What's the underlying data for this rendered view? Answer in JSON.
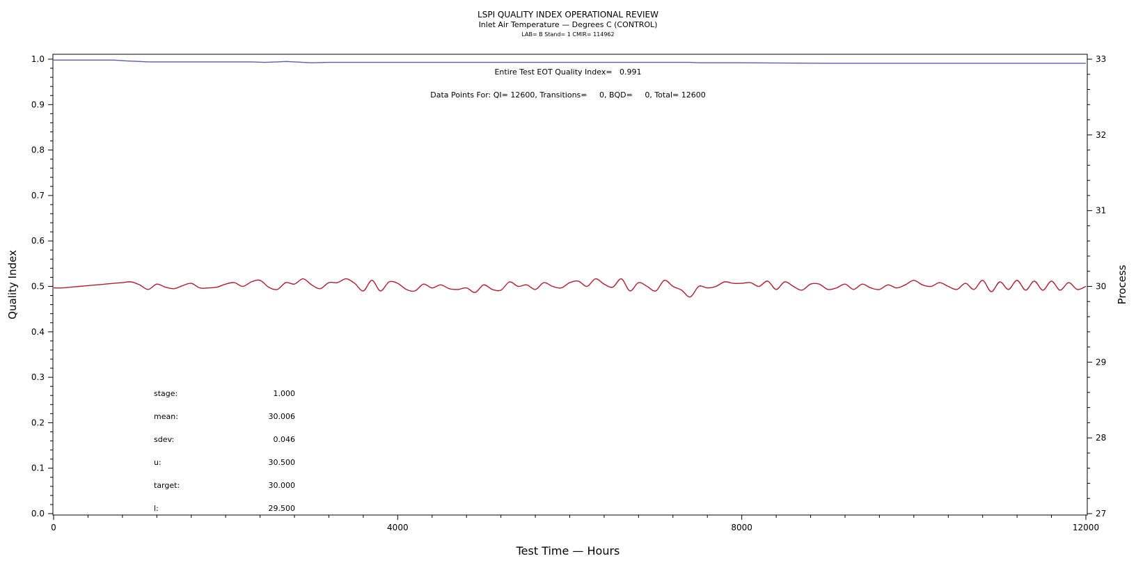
{
  "chart_data": {
    "type": "line",
    "title": "LSPI QUALITY INDEX OPERATIONAL REVIEW",
    "subtitle": "Inlet Air Temperature — Degrees C (CONTROL)",
    "subtitle2": "LAB= B Stand= 1 CMIR= 114962",
    "xlabel": "Test Time — Hours",
    "ylabel_left": "Quality Index",
    "ylabel_right": "Process",
    "xlim": [
      0,
      12000
    ],
    "ylim_left": [
      0.0,
      1.0
    ],
    "ylim_right": [
      27,
      33
    ],
    "x_ticks": [
      "0",
      "4000",
      "8000",
      "12000"
    ],
    "y_left_ticks": [
      "0.0",
      "0.1",
      "0.2",
      "0.3",
      "0.4",
      "0.5",
      "0.6",
      "0.7",
      "0.8",
      "0.9",
      "1.0"
    ],
    "y_right_ticks": [
      "27",
      "28",
      "29",
      "30",
      "31",
      "32",
      "33"
    ],
    "annotations": {
      "quality_index": "Entire Test EOT Quality Index=   0.991",
      "data_points": "Data Points For: QI= 12600, Transitions=     0, BQD=     0, Total= 12600"
    },
    "stats": [
      {
        "label": "stage:",
        "value": "1.000"
      },
      {
        "label": "mean:",
        "value": "30.006"
      },
      {
        "label": "sdev:",
        "value": "0.046"
      },
      {
        "label": "u:",
        "value": "30.500"
      },
      {
        "label": "target:",
        "value": "30.000"
      },
      {
        "label": "l:",
        "value": "29.500"
      }
    ],
    "series": [
      {
        "color": "#5a5ab4",
        "axis": "left",
        "x": [
          0,
          700,
          850,
          1000,
          1100,
          1600,
          2300,
          2450,
          2600,
          2700,
          2900,
          3000,
          3200,
          3500,
          4000,
          5000,
          6000,
          7000,
          7400,
          7500,
          8000,
          9000,
          10000,
          11000,
          12000
        ],
        "y": [
          0.998,
          0.998,
          0.996,
          0.995,
          0.994,
          0.994,
          0.994,
          0.993,
          0.994,
          0.995,
          0.993,
          0.992,
          0.993,
          0.993,
          0.993,
          0.993,
          0.993,
          0.993,
          0.993,
          0.992,
          0.992,
          0.991,
          0.991,
          0.991,
          0.991
        ]
      },
      {
        "color": "#b01c2e",
        "axis": "right",
        "x": [
          0,
          100,
          200,
          300,
          400,
          500,
          600,
          700,
          800,
          900,
          1000,
          1100,
          1200,
          1300,
          1400,
          1500,
          1600,
          1700,
          1800,
          1900,
          2000,
          2100,
          2200,
          2300,
          2400,
          2500,
          2600,
          2700,
          2800,
          2900,
          3000,
          3100,
          3200,
          3300,
          3400,
          3500,
          3600,
          3700,
          3800,
          3900,
          4000,
          4100,
          4200,
          4300,
          4400,
          4500,
          4600,
          4700,
          4800,
          4900,
          5000,
          5100,
          5200,
          5300,
          5400,
          5500,
          5600,
          5700,
          5800,
          5900,
          6000,
          6100,
          6200,
          6300,
          6400,
          6500,
          6600,
          6700,
          6800,
          6900,
          7000,
          7100,
          7200,
          7300,
          7400,
          7500,
          7600,
          7700,
          7800,
          7900,
          8000,
          8100,
          8200,
          8300,
          8400,
          8500,
          8600,
          8700,
          8800,
          8900,
          9000,
          9100,
          9200,
          9300,
          9400,
          9500,
          9600,
          9700,
          9800,
          9900,
          10000,
          10100,
          10200,
          10300,
          10400,
          10500,
          10600,
          10700,
          10800,
          10900,
          11000,
          11100,
          11200,
          11300,
          11400,
          11500,
          11600,
          11700,
          11800,
          11900,
          12000
        ],
        "y": [
          29.98,
          29.98,
          29.99,
          30.0,
          30.01,
          30.02,
          30.03,
          30.04,
          30.05,
          30.06,
          30.02,
          29.96,
          30.03,
          29.99,
          29.97,
          30.01,
          30.04,
          29.98,
          29.98,
          29.99,
          30.03,
          30.05,
          30.0,
          30.06,
          30.08,
          29.99,
          29.96,
          30.05,
          30.03,
          30.1,
          30.02,
          29.97,
          30.05,
          30.05,
          30.1,
          30.04,
          29.94,
          30.08,
          29.94,
          30.06,
          30.04,
          29.96,
          29.94,
          30.03,
          29.98,
          30.02,
          29.97,
          29.96,
          29.98,
          29.92,
          30.02,
          29.96,
          29.95,
          30.06,
          30.0,
          30.02,
          29.96,
          30.05,
          30.0,
          29.98,
          30.05,
          30.07,
          30.0,
          30.1,
          30.03,
          29.99,
          30.1,
          29.94,
          30.05,
          30.0,
          29.94,
          30.08,
          30.0,
          29.95,
          29.86,
          30.0,
          29.98,
          30.0,
          30.06,
          30.04,
          30.04,
          30.05,
          30.0,
          30.07,
          29.96,
          30.06,
          30.0,
          29.95,
          30.03,
          30.03,
          29.96,
          29.98,
          30.03,
          29.96,
          30.03,
          29.98,
          29.96,
          30.02,
          29.98,
          30.02,
          30.08,
          30.02,
          30.0,
          30.05,
          30.0,
          29.96,
          30.04,
          29.96,
          30.08,
          29.93,
          30.06,
          29.96,
          30.08,
          29.95,
          30.07,
          29.95,
          30.07,
          29.95,
          30.05,
          29.96,
          30.0
        ]
      }
    ]
  }
}
